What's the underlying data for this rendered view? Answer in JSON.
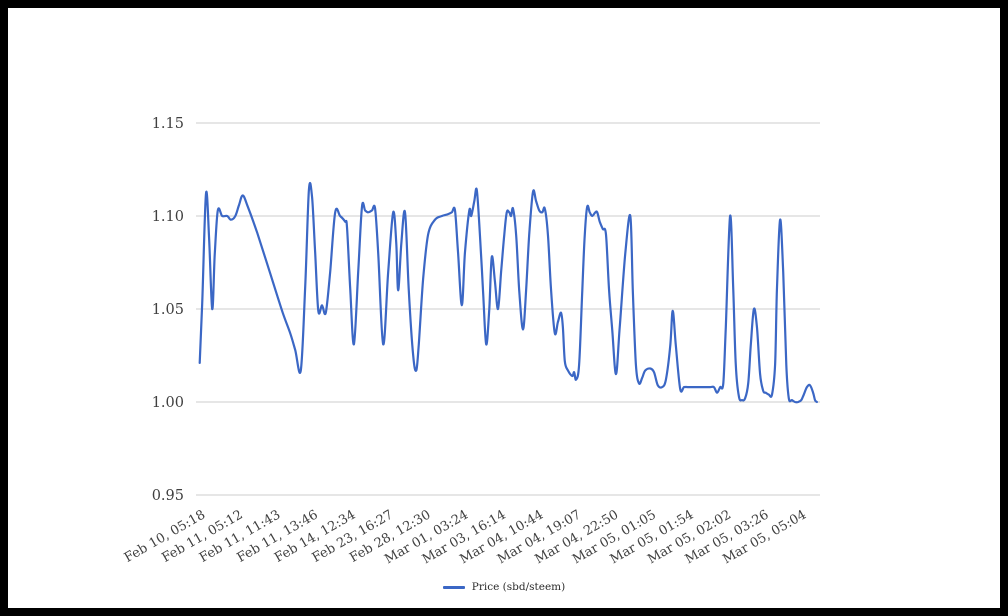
{
  "window": {
    "background": "#ffffff",
    "frame_color": "#000000"
  },
  "chart_data": {
    "type": "line",
    "title": "",
    "xlabel": "",
    "ylabel": "",
    "grid": true,
    "gridline_color": "#cccccc",
    "axis_label_color": "#404040",
    "legend_position": "bottom",
    "ylim": [
      0.95,
      1.175
    ],
    "y_ticks": [
      "0.95",
      "1.00",
      "1.05",
      "1.10",
      "1.15"
    ],
    "y_tick_values": [
      0.95,
      1.0,
      1.05,
      1.1,
      1.15
    ],
    "x_tick_labels": [
      "Feb 10, 05:18",
      "Feb 11, 05:12",
      "Feb 11, 11:43",
      "Feb 11, 13:46",
      "Feb 14, 12:34",
      "Feb 23, 16:27",
      "Feb 28, 12:30",
      "Mar 01, 03:24",
      "Mar 03, 16:14",
      "Mar 04, 10:44",
      "Mar 04, 19:07",
      "Mar 04, 22:50",
      "Mar 05, 01:05",
      "Mar 05, 01:54",
      "Mar 05, 02:02",
      "Mar 05, 03:26",
      "Mar 05, 05:04"
    ],
    "legend": {
      "label": "Price (sbd/steem)"
    },
    "series": [
      {
        "name": "Price (sbd/steem)",
        "color": "#3b67c5",
        "points": [
          [
            0.006,
            1.021
          ],
          [
            0.01,
            1.053
          ],
          [
            0.016,
            1.112
          ],
          [
            0.021,
            1.088
          ],
          [
            0.026,
            1.05
          ],
          [
            0.03,
            1.079
          ],
          [
            0.035,
            1.103
          ],
          [
            0.042,
            1.1
          ],
          [
            0.05,
            1.1
          ],
          [
            0.056,
            1.098
          ],
          [
            0.063,
            1.1
          ],
          [
            0.069,
            1.106
          ],
          [
            0.075,
            1.111
          ],
          [
            0.083,
            1.105
          ],
          [
            0.098,
            1.091
          ],
          [
            0.119,
            1.069
          ],
          [
            0.139,
            1.048
          ],
          [
            0.151,
            1.037
          ],
          [
            0.159,
            1.028
          ],
          [
            0.168,
            1.017
          ],
          [
            0.175,
            1.062
          ],
          [
            0.181,
            1.114
          ],
          [
            0.186,
            1.11
          ],
          [
            0.191,
            1.08
          ],
          [
            0.196,
            1.049
          ],
          [
            0.202,
            1.052
          ],
          [
            0.208,
            1.048
          ],
          [
            0.215,
            1.07
          ],
          [
            0.223,
            1.102
          ],
          [
            0.231,
            1.1
          ],
          [
            0.239,
            1.097
          ],
          [
            0.242,
            1.094
          ],
          [
            0.247,
            1.062
          ],
          [
            0.253,
            1.031
          ],
          [
            0.26,
            1.07
          ],
          [
            0.266,
            1.105
          ],
          [
            0.271,
            1.103
          ],
          [
            0.276,
            1.102
          ],
          [
            0.282,
            1.103
          ],
          [
            0.287,
            1.104
          ],
          [
            0.292,
            1.08
          ],
          [
            0.3,
            1.031
          ],
          [
            0.308,
            1.07
          ],
          [
            0.316,
            1.102
          ],
          [
            0.321,
            1.085
          ],
          [
            0.324,
            1.06
          ],
          [
            0.329,
            1.085
          ],
          [
            0.335,
            1.102
          ],
          [
            0.341,
            1.06
          ],
          [
            0.348,
            1.025
          ],
          [
            0.353,
            1.017
          ],
          [
            0.357,
            1.031
          ],
          [
            0.364,
            1.066
          ],
          [
            0.372,
            1.09
          ],
          [
            0.383,
            1.098
          ],
          [
            0.394,
            1.1
          ],
          [
            0.404,
            1.101
          ],
          [
            0.41,
            1.102
          ],
          [
            0.415,
            1.103
          ],
          [
            0.42,
            1.08
          ],
          [
            0.426,
            1.052
          ],
          [
            0.431,
            1.08
          ],
          [
            0.438,
            1.103
          ],
          [
            0.441,
            1.1
          ],
          [
            0.446,
            1.108
          ],
          [
            0.45,
            1.114
          ],
          [
            0.455,
            1.09
          ],
          [
            0.46,
            1.06
          ],
          [
            0.465,
            1.031
          ],
          [
            0.47,
            1.05
          ],
          [
            0.474,
            1.078
          ],
          [
            0.479,
            1.065
          ],
          [
            0.484,
            1.05
          ],
          [
            0.489,
            1.07
          ],
          [
            0.494,
            1.09
          ],
          [
            0.498,
            1.102
          ],
          [
            0.502,
            1.102
          ],
          [
            0.505,
            1.1
          ],
          [
            0.508,
            1.104
          ],
          [
            0.513,
            1.09
          ],
          [
            0.518,
            1.06
          ],
          [
            0.524,
            1.039
          ],
          [
            0.529,
            1.06
          ],
          [
            0.534,
            1.09
          ],
          [
            0.54,
            1.113
          ],
          [
            0.545,
            1.108
          ],
          [
            0.55,
            1.103
          ],
          [
            0.555,
            1.102
          ],
          [
            0.559,
            1.104
          ],
          [
            0.564,
            1.09
          ],
          [
            0.569,
            1.06
          ],
          [
            0.575,
            1.037
          ],
          [
            0.58,
            1.043
          ],
          [
            0.585,
            1.048
          ],
          [
            0.588,
            1.04
          ],
          [
            0.591,
            1.022
          ],
          [
            0.596,
            1.017
          ],
          [
            0.603,
            1.014
          ],
          [
            0.606,
            1.016
          ],
          [
            0.609,
            1.012
          ],
          [
            0.614,
            1.02
          ],
          [
            0.619,
            1.06
          ],
          [
            0.623,
            1.09
          ],
          [
            0.627,
            1.105
          ],
          [
            0.631,
            1.102
          ],
          [
            0.635,
            1.1
          ],
          [
            0.64,
            1.102
          ],
          [
            0.643,
            1.102
          ],
          [
            0.647,
            1.097
          ],
          [
            0.652,
            1.093
          ],
          [
            0.657,
            1.09
          ],
          [
            0.662,
            1.06
          ],
          [
            0.667,
            1.039
          ],
          [
            0.673,
            1.015
          ],
          [
            0.679,
            1.04
          ],
          [
            0.688,
            1.08
          ],
          [
            0.696,
            1.1
          ],
          [
            0.7,
            1.06
          ],
          [
            0.705,
            1.02
          ],
          [
            0.71,
            1.01
          ],
          [
            0.715,
            1.013
          ],
          [
            0.72,
            1.017
          ],
          [
            0.728,
            1.018
          ],
          [
            0.734,
            1.016
          ],
          [
            0.74,
            1.009
          ],
          [
            0.747,
            1.008
          ],
          [
            0.753,
            1.012
          ],
          [
            0.76,
            1.03
          ],
          [
            0.764,
            1.049
          ],
          [
            0.769,
            1.03
          ],
          [
            0.776,
            1.007
          ],
          [
            0.782,
            1.008
          ],
          [
            0.788,
            1.008
          ],
          [
            0.795,
            1.008
          ],
          [
            0.801,
            1.008
          ],
          [
            0.808,
            1.008
          ],
          [
            0.816,
            1.008
          ],
          [
            0.824,
            1.008
          ],
          [
            0.83,
            1.008
          ],
          [
            0.835,
            1.005
          ],
          [
            0.84,
            1.008
          ],
          [
            0.845,
            1.01
          ],
          [
            0.849,
            1.04
          ],
          [
            0.856,
            1.1
          ],
          [
            0.861,
            1.06
          ],
          [
            0.865,
            1.02
          ],
          [
            0.87,
            1.003
          ],
          [
            0.875,
            1.001
          ],
          [
            0.88,
            1.002
          ],
          [
            0.885,
            1.01
          ],
          [
            0.889,
            1.03
          ],
          [
            0.894,
            1.05
          ],
          [
            0.899,
            1.04
          ],
          [
            0.904,
            1.015
          ],
          [
            0.909,
            1.006
          ],
          [
            0.913,
            1.005
          ],
          [
            0.918,
            1.004
          ],
          [
            0.923,
            1.004
          ],
          [
            0.928,
            1.02
          ],
          [
            0.931,
            1.06
          ],
          [
            0.936,
            1.098
          ],
          [
            0.941,
            1.07
          ],
          [
            0.946,
            1.02
          ],
          [
            0.95,
            1.002
          ],
          [
            0.955,
            1.001
          ],
          [
            0.96,
            1.0
          ],
          [
            0.965,
            1.0
          ],
          [
            0.97,
            1.001
          ],
          [
            0.974,
            1.004
          ],
          [
            0.979,
            1.008
          ],
          [
            0.984,
            1.009
          ],
          [
            0.989,
            1.005
          ],
          [
            0.992,
            1.001
          ],
          [
            0.995,
            1.0
          ]
        ]
      }
    ]
  }
}
